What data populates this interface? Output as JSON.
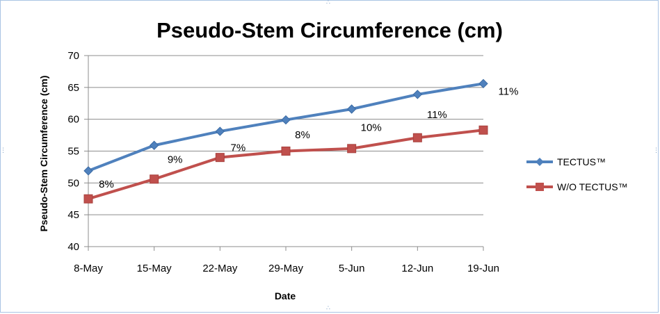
{
  "chart_data": {
    "type": "line",
    "title": "Pseudo-Stem Circumference (cm)",
    "xlabel": "Date",
    "ylabel": "Pseudo-Stem Circumference (cm)",
    "ylim": [
      40,
      70
    ],
    "yticks": [
      "40",
      "45",
      "50",
      "55",
      "60",
      "65",
      "70"
    ],
    "grid": true,
    "legend_position": "right",
    "categories": [
      "8-May",
      "15-May",
      "22-May",
      "29-May",
      "5-Jun",
      "12-Jun",
      "19-Jun"
    ],
    "series": [
      {
        "name": "TECTUS™",
        "color": "#4f81bd",
        "marker": "diamond",
        "values": [
          51.9,
          55.9,
          58.1,
          59.9,
          61.6,
          63.9,
          65.6
        ]
      },
      {
        "name": "W/O TECTUS™",
        "color": "#c0504d",
        "marker": "square",
        "values": [
          47.5,
          50.6,
          54.0,
          55.0,
          55.4,
          57.1,
          58.3
        ]
      }
    ],
    "annotations": [
      "8%",
      "9%",
      "7%",
      "8%",
      "10%",
      "11%",
      "11%"
    ]
  }
}
